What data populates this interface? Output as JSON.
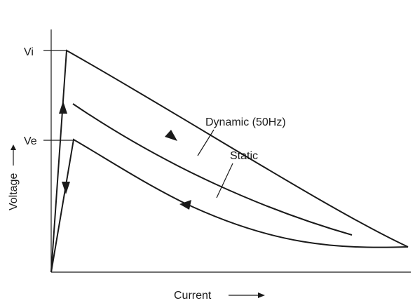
{
  "chart_data": {
    "type": "line",
    "title": "",
    "xlabel": "Current",
    "ylabel": "Voltage",
    "grid": false,
    "y_ticks": [
      "Vi",
      "Ve"
    ],
    "series": [
      {
        "name": "Dynamic (50Hz)",
        "direction_arrows": [
          "up",
          "down-right"
        ],
        "points": [
          [
            0,
            0
          ],
          [
            0.04,
            1.0
          ],
          [
            0.3,
            0.74
          ],
          [
            0.55,
            0.5
          ],
          [
            0.8,
            0.24
          ],
          [
            1.0,
            0.1
          ]
        ]
      },
      {
        "name": "Static",
        "direction_arrows": [],
        "points": [
          [
            0.06,
            0.78
          ],
          [
            0.3,
            0.57
          ],
          [
            0.55,
            0.38
          ],
          [
            0.72,
            0.25
          ],
          [
            0.84,
            0.15
          ]
        ]
      },
      {
        "name": "",
        "direction_arrows": [
          "down",
          "left"
        ],
        "points": [
          [
            1.0,
            0.1
          ],
          [
            0.8,
            0.1
          ],
          [
            0.5,
            0.24
          ],
          [
            0.3,
            0.43
          ],
          [
            0.06,
            0.6
          ],
          [
            0.03,
            0.6
          ],
          [
            0,
            0
          ]
        ]
      }
    ]
  },
  "colors": {
    "line": "#1a1a1a",
    "background": "#ffffff"
  }
}
